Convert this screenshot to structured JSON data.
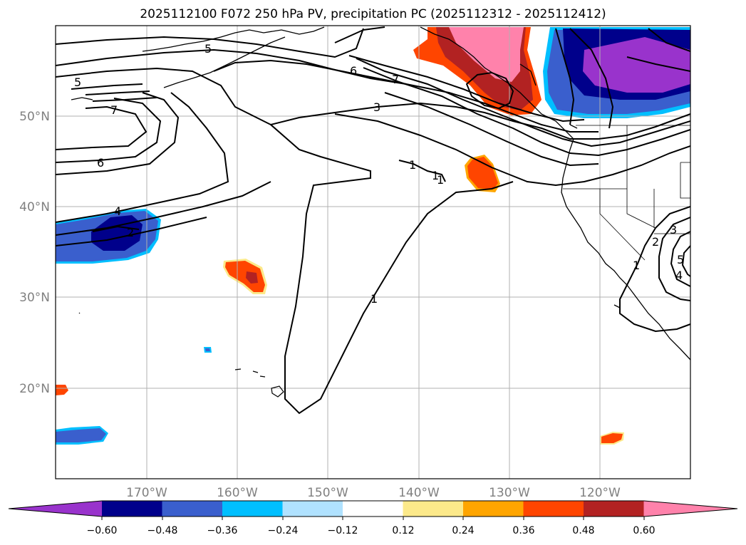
{
  "title": "2025112100 F072 250 hPa PV, precipitation PC (2025112312 - 2025112412)",
  "map": {
    "lat_labels": [
      "50°N",
      "40°N",
      "30°N",
      "20°N"
    ],
    "lon_labels": [
      "170°W",
      "160°W",
      "150°W",
      "140°W",
      "130°W",
      "120°W"
    ],
    "pv_contour_labels": [
      "5",
      "5",
      "7",
      "6",
      "6",
      "7",
      "3",
      "4",
      "2",
      "1",
      "1",
      "1",
      "1",
      "2",
      "3",
      "4",
      "5",
      "1"
    ]
  },
  "colorbar": {
    "ticks": [
      "−0.60",
      "−0.48",
      "−0.36",
      "−0.24",
      "−0.12",
      "0.12",
      "0.24",
      "0.36",
      "0.48",
      "0.60"
    ],
    "colors": [
      "#9933cc",
      "#00008b",
      "#3a5fcd",
      "#00bfff",
      "#b0e2ff",
      "#ffffff",
      "#fce98a",
      "#ffa500",
      "#ff4500",
      "#b22222",
      "#ff82ab"
    ]
  }
}
